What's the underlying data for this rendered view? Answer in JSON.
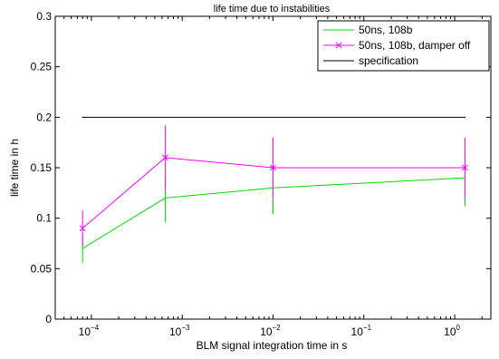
{
  "chart_data": {
    "type": "line",
    "title": "life time due to instabilities",
    "xlabel": "BLM signal integration time in s",
    "ylabel": "life time in h",
    "xscale": "log",
    "xlim": [
      4e-05,
      2.5
    ],
    "ylim": [
      0,
      0.3
    ],
    "grid": false,
    "legend_position": "top-right",
    "yticks": [
      {
        "value": 0,
        "label": "0"
      },
      {
        "value": 0.05,
        "label": "0.05"
      },
      {
        "value": 0.1,
        "label": "0.1"
      },
      {
        "value": 0.15,
        "label": "0.15"
      },
      {
        "value": 0.2,
        "label": "0.2"
      },
      {
        "value": 0.25,
        "label": "0.25"
      },
      {
        "value": 0.3,
        "label": "0.3"
      }
    ],
    "xticks": [
      {
        "value": 0.0001,
        "base": "10",
        "exp": "−4"
      },
      {
        "value": 0.001,
        "base": "10",
        "exp": "−3"
      },
      {
        "value": 0.01,
        "base": "10",
        "exp": "−2"
      },
      {
        "value": 0.1,
        "base": "10",
        "exp": "−1"
      },
      {
        "value": 1,
        "base": "10",
        "exp": "0"
      }
    ],
    "series": [
      {
        "name": "50ns, 108b",
        "color": "#00dd00",
        "marker": "none",
        "x": [
          8e-05,
          0.00065,
          0.01,
          1.3
        ],
        "y": [
          0.07,
          0.12,
          0.13,
          0.14
        ],
        "err_low": [
          0.056,
          0.096,
          0.104,
          0.112
        ],
        "err_high": [
          0.084,
          0.144,
          0.156,
          0.168
        ]
      },
      {
        "name": "50ns, 108b, damper off",
        "color": "#ff00ff",
        "marker": "x",
        "x": [
          8e-05,
          0.00065,
          0.01,
          1.3
        ],
        "y": [
          0.09,
          0.16,
          0.15,
          0.15
        ],
        "err_low": [
          0.072,
          0.128,
          0.12,
          0.12
        ],
        "err_high": [
          0.108,
          0.192,
          0.18,
          0.18
        ]
      },
      {
        "name": "specification",
        "color": "#000000",
        "marker": "none",
        "x": [
          8e-05,
          1.3
        ],
        "y": [
          0.2,
          0.2
        ]
      }
    ]
  }
}
